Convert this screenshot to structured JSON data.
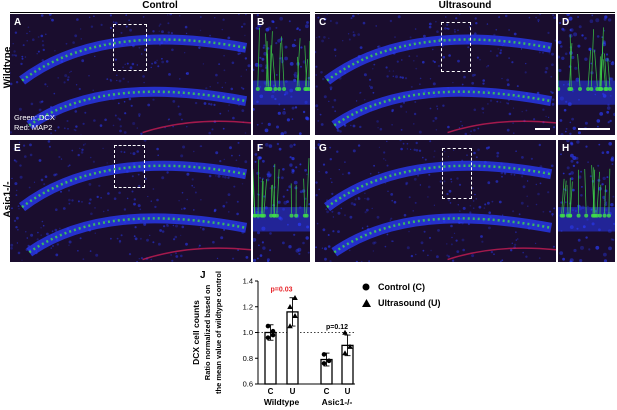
{
  "columns": {
    "control": "Control",
    "ultrasound": "Ultrasound"
  },
  "rows": {
    "wildtype": "Wildtype",
    "asic1": "Asic1-/-"
  },
  "panels": {
    "A": "A",
    "B": "B",
    "C": "C",
    "D": "D",
    "E": "E",
    "F": "F",
    "G": "G",
    "H": "H",
    "J": "J"
  },
  "stain_labels": {
    "green": "Green: DCX",
    "red": "Red: MAP2"
  },
  "colors": {
    "dcx": "#3fdc4a",
    "map2": "#e0205a",
    "nuclei": "#2a3cff",
    "background": "#1a0d2e",
    "pvalue_significant": "#e8262b"
  },
  "chart_data": {
    "type": "bar",
    "ylabel_line1": "DCX cell counts",
    "ylabel_line2": "Ratio normalized based on",
    "ylabel_line3": "the mean value of wildtype control",
    "ylim": [
      0.6,
      1.4
    ],
    "yticks": [
      "0.6",
      "0.8",
      "1.0",
      "1.2",
      "1.4"
    ],
    "reference_line": 1.0,
    "groups": [
      {
        "name": "Wildtype",
        "bars": [
          {
            "label": "C",
            "value": 1.0,
            "error": 0.06,
            "points": [
              0.96,
              0.98,
              1.05,
              1.01
            ]
          },
          {
            "label": "U",
            "value": 1.16,
            "error": 0.11,
            "points": [
              1.05,
              1.13,
              1.2,
              1.27
            ]
          }
        ],
        "pvalue": "p=0.03",
        "pvalue_significant": true
      },
      {
        "name": "Asic1-/-",
        "bars": [
          {
            "label": "C",
            "value": 0.79,
            "error": 0.05,
            "points": [
              0.76,
              0.78,
              0.83
            ]
          },
          {
            "label": "U",
            "value": 0.9,
            "error": 0.08,
            "points": [
              0.84,
              0.89,
              1.0
            ]
          }
        ],
        "pvalue": "p=0.12",
        "pvalue_significant": false
      }
    ],
    "legend": [
      {
        "marker": "circle",
        "label": "Control (C)"
      },
      {
        "marker": "triangle",
        "label": "Ultrasound (U)"
      }
    ]
  }
}
